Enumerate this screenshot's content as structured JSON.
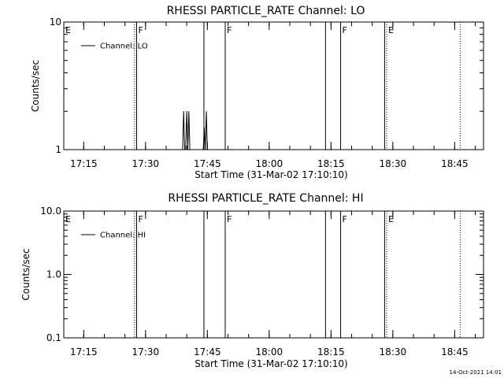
{
  "stamp": "14-Oct-2021 14:01",
  "chart_data": [
    {
      "type": "line",
      "title": "RHESSI PARTICLE_RATE Channel: LO",
      "xlabel": "Start Time (31-Mar-02 17:10:10)",
      "ylabel": "Counts/sec",
      "yscale": "log",
      "ylim": [
        1,
        10
      ],
      "y_ticks": [
        {
          "v": 1,
          "label": "1"
        },
        {
          "v": 10,
          "label": "10"
        }
      ],
      "xlim": [
        "17:10:10",
        "18:52:00"
      ],
      "x_ticks": [
        {
          "t": "17:15",
          "label": "17:15"
        },
        {
          "t": "17:30",
          "label": "17:30"
        },
        {
          "t": "17:45",
          "label": "17:45"
        },
        {
          "t": "18:00",
          "label": "18:00"
        },
        {
          "t": "18:15",
          "label": "18:15"
        },
        {
          "t": "18:30",
          "label": "18:30"
        },
        {
          "t": "18:45",
          "label": "18:45"
        }
      ],
      "legend": {
        "label": "Channel: LO",
        "placement": "top-left"
      },
      "series": [
        {
          "name": "Channel: LO",
          "points": [
            [
              "17:39:00",
              1
            ],
            [
              "17:39:15",
              2
            ],
            [
              "17:39:30",
              1
            ],
            [
              "17:39:45",
              1
            ],
            [
              "17:40:00",
              2
            ],
            [
              "17:40:15",
              1
            ],
            [
              "17:40:30",
              2
            ],
            [
              "17:40:45",
              1
            ],
            [
              "17:44:00",
              1
            ],
            [
              "17:44:15",
              1.5
            ],
            [
              "17:44:30",
              1
            ],
            [
              "17:44:45",
              2
            ],
            [
              "17:45:00",
              1
            ]
          ]
        }
      ],
      "markers": [
        {
          "t": "17:10:10",
          "style": "solid",
          "label": "E"
        },
        {
          "t": "17:27:20",
          "style": "dotted",
          "label": ""
        },
        {
          "t": "17:27:50",
          "style": "solid",
          "label": "F"
        },
        {
          "t": "17:44:10",
          "style": "solid",
          "label": ""
        },
        {
          "t": "17:49:20",
          "style": "solid",
          "label": "F"
        },
        {
          "t": "18:13:40",
          "style": "solid",
          "label": ""
        },
        {
          "t": "18:17:20",
          "style": "solid",
          "label": "F"
        },
        {
          "t": "18:28:00",
          "style": "solid",
          "label": ""
        },
        {
          "t": "18:28:30",
          "style": "dotted",
          "label": "E"
        },
        {
          "t": "18:46:20",
          "style": "dotted",
          "label": ""
        }
      ]
    },
    {
      "type": "line",
      "title": "RHESSI PARTICLE_RATE Channel: HI",
      "xlabel": "Start Time (31-Mar-02 17:10:10)",
      "ylabel": "Counts/sec",
      "yscale": "log",
      "ylim": [
        0.1,
        10
      ],
      "y_ticks": [
        {
          "v": 0.1,
          "label": "0.1"
        },
        {
          "v": 1,
          "label": "1.0"
        },
        {
          "v": 10,
          "label": "10.0"
        }
      ],
      "xlim": [
        "17:10:10",
        "18:52:00"
      ],
      "x_ticks": [
        {
          "t": "17:15",
          "label": "17:15"
        },
        {
          "t": "17:30",
          "label": "17:30"
        },
        {
          "t": "17:45",
          "label": "17:45"
        },
        {
          "t": "18:00",
          "label": "18:00"
        },
        {
          "t": "18:15",
          "label": "18:15"
        },
        {
          "t": "18:30",
          "label": "18:30"
        },
        {
          "t": "18:45",
          "label": "18:45"
        }
      ],
      "legend": {
        "label": "Channel: HI",
        "placement": "top-left"
      },
      "series": [
        {
          "name": "Channel: HI",
          "points": []
        }
      ],
      "markers": [
        {
          "t": "17:10:10",
          "style": "solid",
          "label": "E"
        },
        {
          "t": "17:27:20",
          "style": "dotted",
          "label": ""
        },
        {
          "t": "17:27:50",
          "style": "solid",
          "label": "F"
        },
        {
          "t": "17:44:10",
          "style": "solid",
          "label": ""
        },
        {
          "t": "17:49:20",
          "style": "solid",
          "label": "F"
        },
        {
          "t": "18:13:40",
          "style": "solid",
          "label": ""
        },
        {
          "t": "18:17:20",
          "style": "solid",
          "label": "F"
        },
        {
          "t": "18:28:00",
          "style": "solid",
          "label": ""
        },
        {
          "t": "18:28:30",
          "style": "dotted",
          "label": "E"
        },
        {
          "t": "18:46:20",
          "style": "dotted",
          "label": ""
        }
      ]
    }
  ]
}
